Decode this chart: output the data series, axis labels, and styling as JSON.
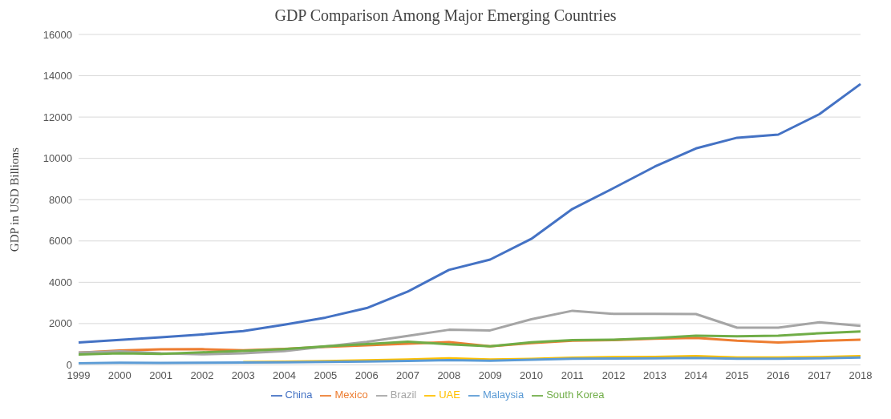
{
  "chart_data": {
    "type": "line",
    "title": "GDP Comparison Among Major Emerging Countries",
    "ylabel": "GDP in USD Billions",
    "categories": [
      "1999",
      "2000",
      "2001",
      "2002",
      "2003",
      "2004",
      "2005",
      "2006",
      "2007",
      "2008",
      "2009",
      "2010",
      "2011",
      "2012",
      "2013",
      "2014",
      "2015",
      "2016",
      "2017",
      "2018"
    ],
    "series": [
      {
        "name": "China",
        "color": "#4472c4",
        "values": [
          1080,
          1210,
          1340,
          1470,
          1640,
          1950,
          2290,
          2750,
          3550,
          4600,
          5100,
          6100,
          7550,
          8560,
          9600,
          10480,
          11000,
          11150,
          12140,
          13600
        ]
      },
      {
        "name": "Mexico",
        "color": "#ed7d31",
        "values": [
          590,
          700,
          750,
          760,
          710,
          770,
          870,
          950,
          1030,
          1100,
          900,
          1050,
          1170,
          1200,
          1270,
          1310,
          1170,
          1080,
          1160,
          1220
        ]
      },
      {
        "name": "Brazil",
        "color": "#a5a5a5",
        "values": [
          600,
          660,
          560,
          510,
          560,
          670,
          890,
          1110,
          1400,
          1700,
          1670,
          2210,
          2620,
          2470,
          2470,
          2460,
          1800,
          1800,
          2060,
          1890
        ]
      },
      {
        "name": "UAE",
        "color": "#ffc000",
        "values": [
          null,
          null,
          null,
          null,
          130,
          150,
          180,
          220,
          260,
          320,
          260,
          290,
          350,
          380,
          390,
          420,
          360,
          360,
          380,
          420
        ]
      },
      {
        "name": "Malaysia",
        "color": "#5b9bd5",
        "values": [
          80,
          100,
          90,
          100,
          110,
          120,
          140,
          160,
          190,
          230,
          200,
          250,
          300,
          310,
          320,
          340,
          300,
          300,
          320,
          360
        ]
      },
      {
        "name": "South Korea",
        "color": "#70ad47",
        "values": [
          500,
          560,
          530,
          610,
          680,
          760,
          900,
          1010,
          1120,
          1000,
          900,
          1090,
          1200,
          1220,
          1300,
          1410,
          1380,
          1410,
          1530,
          1620
        ]
      }
    ],
    "ylim": [
      0,
      16000
    ],
    "yticks": [
      0,
      2000,
      4000,
      6000,
      8000,
      10000,
      12000,
      14000,
      16000
    ],
    "grid": "y",
    "legend": "bottom",
    "marker": "none",
    "line_style": "solid"
  }
}
